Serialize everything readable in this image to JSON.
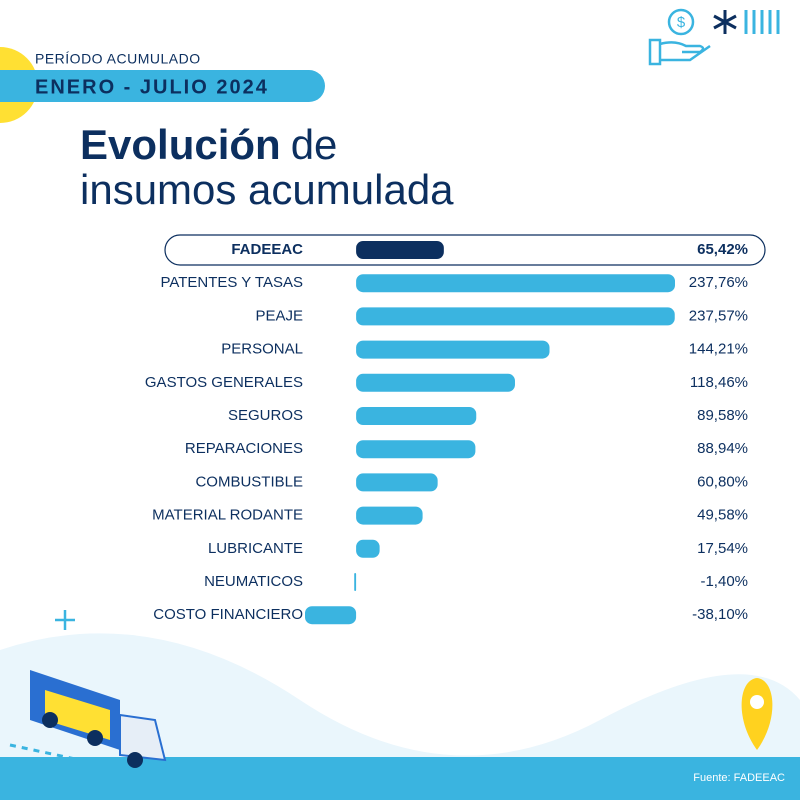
{
  "header": {
    "period_label": "PERÍODO ACUMULADO",
    "period": "ENERO - JULIO 2024",
    "icon_symbol": "$"
  },
  "chart_data": {
    "type": "bar",
    "orientation": "horizontal",
    "title_parts": [
      "Evolución",
      "de",
      "insumos acumulada"
    ],
    "categories": [
      "FADEEAC",
      "PATENTES Y TASAS",
      "PEAJE",
      "PERSONAL",
      "GASTOS GENERALES",
      "SEGUROS",
      "REPARACIONES",
      "COMBUSTIBLE",
      "MATERIAL RODANTE",
      "LUBRICANTE",
      "NEUMATICOS",
      "COSTO FINANCIERO"
    ],
    "values": [
      65.42,
      237.76,
      237.57,
      144.21,
      118.46,
      89.58,
      88.94,
      60.8,
      49.58,
      17.54,
      -1.4,
      -38.1
    ],
    "value_labels": [
      "65,42%",
      "237,76%",
      "237,57%",
      "144,21%",
      "118,46%",
      "89,58%",
      "88,94%",
      "60,80%",
      "49,58%",
      "17,54%",
      "-1,40%",
      "-38,10%"
    ],
    "color": "#3ab4e0",
    "highlight": 0,
    "highlight_color": "#0c2f5f"
  },
  "footer": {
    "source": "Fuente: FADEEAC"
  }
}
